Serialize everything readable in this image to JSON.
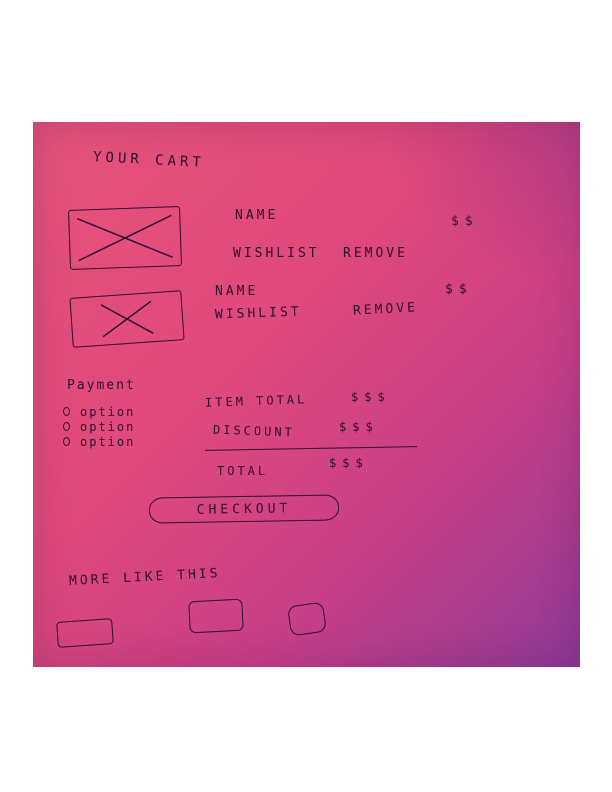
{
  "cart": {
    "title": "YOUR CART",
    "items": [
      {
        "name": "NAME",
        "price": "$$",
        "wishlist": "WISHLIST",
        "remove": "REMOVE"
      },
      {
        "name": "NAME",
        "price": "$$",
        "wishlist": "WISHLIST",
        "remove": "REMOVE"
      }
    ]
  },
  "payment": {
    "title": "Payment",
    "options": [
      "option",
      "option",
      "option"
    ]
  },
  "summary": {
    "item_total_label": "ITEM TOTAL",
    "item_total_value": "$$$",
    "discount_label": "DISCOUNT",
    "discount_value": "$$$",
    "total_label": "TOTAL",
    "total_value": "$$$"
  },
  "checkout": {
    "label": "CHECKOUT"
  },
  "more_like_this": {
    "title": "MORE LIKE THIS"
  },
  "colors": {
    "paper": "#e0497c",
    "ink": "#2b0f30",
    "page": "#ffffff"
  },
  "icons": {
    "product_placeholder": "image-placeholder-icon"
  }
}
